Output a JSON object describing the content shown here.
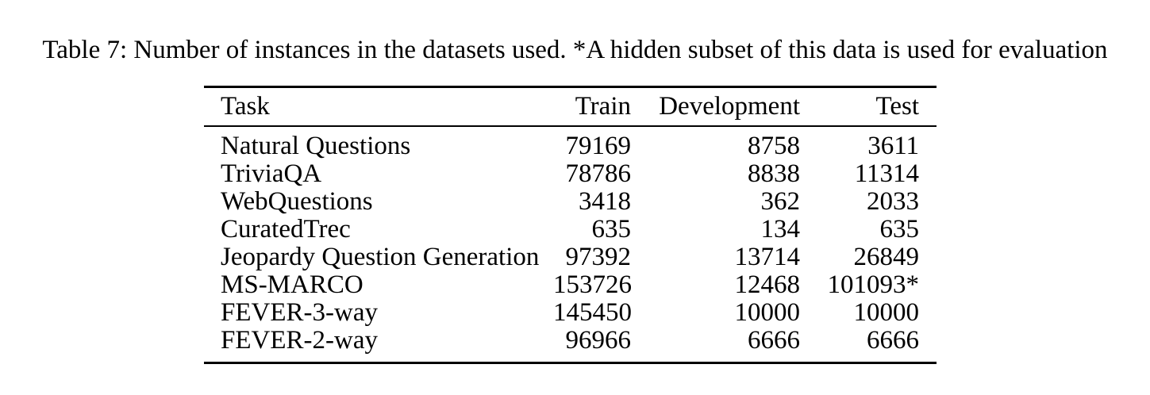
{
  "caption": "Table 7: Number of instances in the datasets used. *A hidden subset of this data is used for evaluation",
  "table": {
    "columns": [
      "Task",
      "Train",
      "Development",
      "Test"
    ],
    "rows": [
      [
        "Natural Questions",
        "79169",
        "8758",
        "3611"
      ],
      [
        "TriviaQA",
        "78786",
        "8838",
        "11314"
      ],
      [
        "WebQuestions",
        "3418",
        "362",
        "2033"
      ],
      [
        "CuratedTrec",
        "635",
        "134",
        "635"
      ],
      [
        "Jeopardy Question Generation",
        "97392",
        "13714",
        "26849"
      ],
      [
        "MS-MARCO",
        "153726",
        "12468",
        "101093*"
      ],
      [
        "FEVER-3-way",
        "145450",
        "10000",
        "10000"
      ],
      [
        "FEVER-2-way",
        "96966",
        "6666",
        "6666"
      ]
    ],
    "footnote_marker": "*"
  },
  "colors": {
    "text": "#000000",
    "background": "#ffffff",
    "rule": "#000000"
  }
}
